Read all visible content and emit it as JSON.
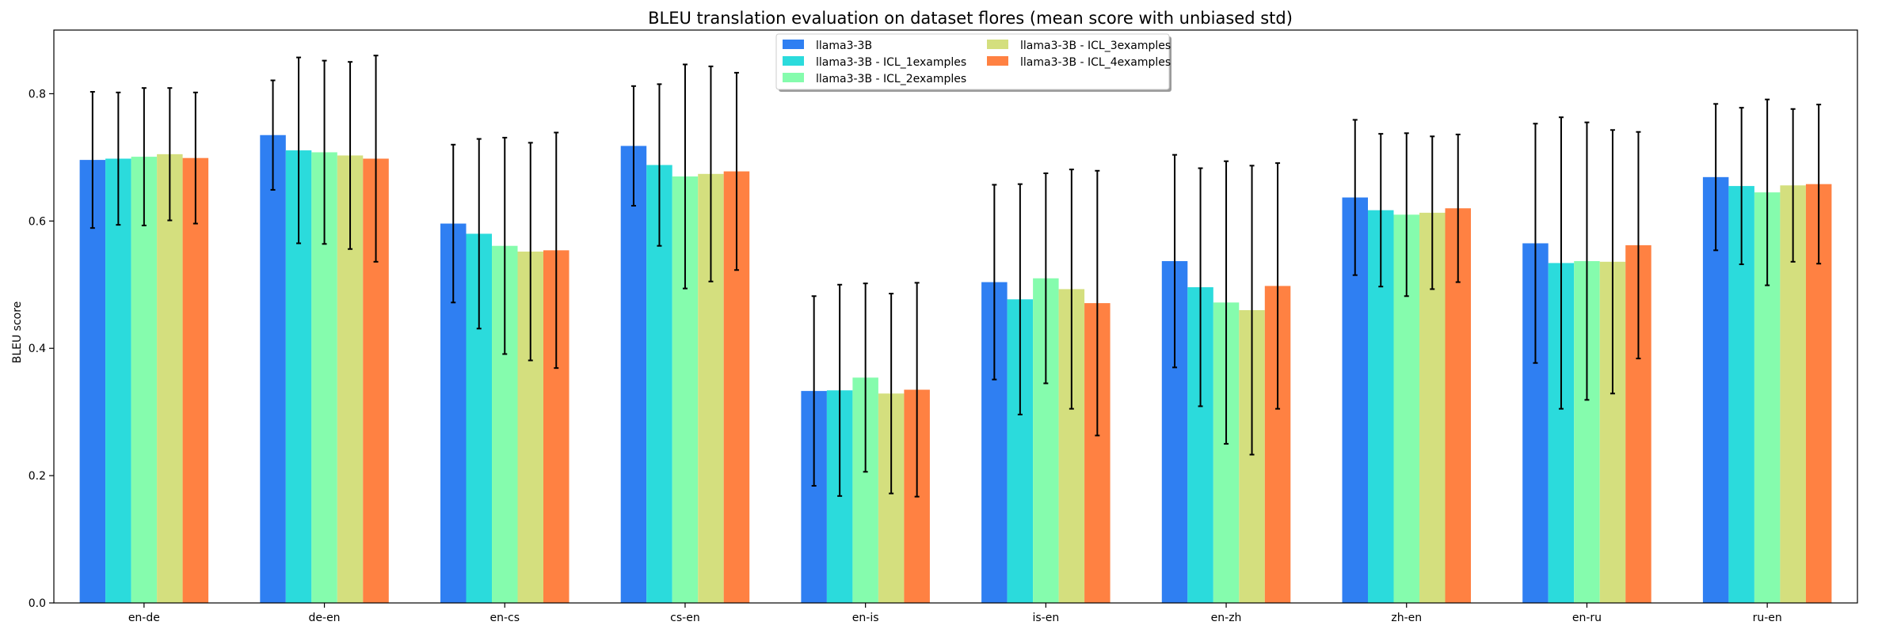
{
  "chart_data": {
    "type": "bar",
    "title": "BLEU translation evaluation on dataset flores (mean score with unbiased std)",
    "xlabel": "",
    "ylabel": "BLEU score",
    "ylim": [
      0,
      0.9
    ],
    "yticks": [
      0.0,
      0.2,
      0.4,
      0.6,
      0.8
    ],
    "ytick_labels": [
      "0.0",
      "0.2",
      "0.4",
      "0.6",
      "0.8"
    ],
    "grid": false,
    "legend_position": "top-center",
    "error_bars": "unbiased std",
    "categories": [
      "en-de",
      "de-en",
      "en-cs",
      "cs-en",
      "en-is",
      "is-en",
      "en-zh",
      "zh-en",
      "en-ru",
      "ru-en"
    ],
    "series": [
      {
        "name": "llama3-3B",
        "color": "#2f7ff2",
        "values": [
          0.696,
          0.735,
          0.596,
          0.718,
          0.333,
          0.504,
          0.537,
          0.637,
          0.565,
          0.669
        ],
        "std": [
          0.107,
          0.086,
          0.124,
          0.094,
          0.149,
          0.153,
          0.167,
          0.122,
          0.188,
          0.115
        ]
      },
      {
        "name": "llama3-3B - ICL_1examples",
        "color": "#2bdbdc",
        "values": [
          0.698,
          0.711,
          0.58,
          0.688,
          0.334,
          0.477,
          0.496,
          0.617,
          0.534,
          0.655
        ],
        "std": [
          0.104,
          0.146,
          0.149,
          0.127,
          0.166,
          0.181,
          0.187,
          0.12,
          0.229,
          0.123
        ]
      },
      {
        "name": "llama3-3B - ICL_2examples",
        "color": "#85fcad",
        "values": [
          0.701,
          0.708,
          0.561,
          0.67,
          0.354,
          0.51,
          0.472,
          0.61,
          0.537,
          0.645
        ],
        "std": [
          0.108,
          0.144,
          0.17,
          0.176,
          0.148,
          0.165,
          0.222,
          0.128,
          0.218,
          0.146
        ]
      },
      {
        "name": "llama3-3B - ICL_3examples",
        "color": "#d4df7e",
        "values": [
          0.705,
          0.703,
          0.552,
          0.674,
          0.329,
          0.493,
          0.46,
          0.613,
          0.536,
          0.656
        ],
        "std": [
          0.104,
          0.147,
          0.171,
          0.169,
          0.157,
          0.188,
          0.227,
          0.12,
          0.207,
          0.12
        ]
      },
      {
        "name": "llama3-3B - ICL_4examples",
        "color": "#ff8142",
        "values": [
          0.699,
          0.698,
          0.554,
          0.678,
          0.335,
          0.471,
          0.498,
          0.62,
          0.562,
          0.658
        ],
        "std": [
          0.103,
          0.162,
          0.185,
          0.155,
          0.168,
          0.208,
          0.193,
          0.116,
          0.178,
          0.125
        ]
      }
    ]
  }
}
